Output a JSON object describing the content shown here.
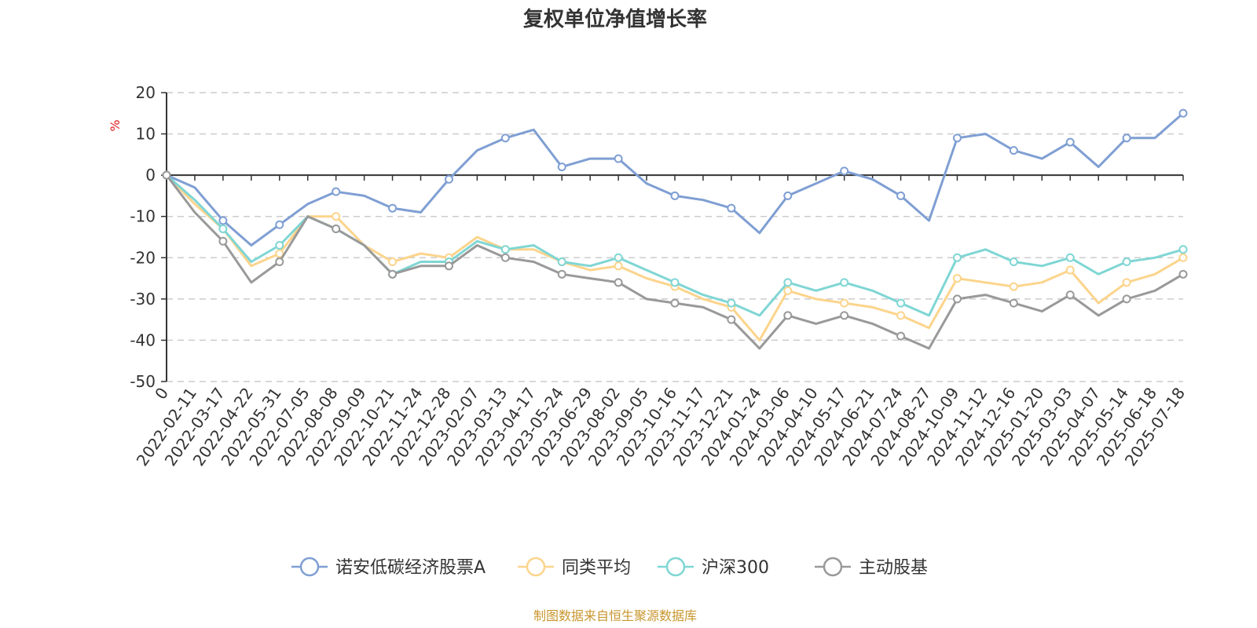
{
  "chart_data": {
    "type": "line",
    "title": "复权单位净值增长率",
    "ylabel": "%",
    "ylim": [
      -50,
      20
    ],
    "yticks": [
      20,
      10,
      0,
      -10,
      -20,
      -30,
      -40,
      -50
    ],
    "grid": true,
    "legend_position": "bottom",
    "categories": [
      "0",
      "2022-02-11",
      "2022-03-17",
      "2022-04-22",
      "2022-05-31",
      "2022-07-05",
      "2022-08-08",
      "2022-09-09",
      "2022-10-21",
      "2022-11-24",
      "2022-12-28",
      "2023-02-07",
      "2023-03-13",
      "2023-04-17",
      "2023-05-24",
      "2023-06-29",
      "2023-08-02",
      "2023-09-05",
      "2023-10-16",
      "2023-11-17",
      "2023-12-21",
      "2024-01-24",
      "2024-03-06",
      "2024-04-10",
      "2024-05-17",
      "2024-06-21",
      "2024-07-24",
      "2024-08-27",
      "2024-10-09",
      "2024-11-12",
      "2024-12-16",
      "2025-01-20",
      "2025-03-03",
      "2025-04-07",
      "2025-05-14",
      "2025-06-18",
      "2025-07-18"
    ],
    "series": [
      {
        "name": "诺安低碳经济股票A",
        "color": "#7f9fd3",
        "values": [
          0,
          -3,
          -11,
          -17,
          -12,
          -7,
          -4,
          -5,
          -8,
          -9,
          -1,
          6,
          9,
          11,
          2,
          4,
          4,
          -2,
          -5,
          -6,
          -8,
          -14,
          -5,
          -2,
          1,
          -1,
          -5,
          -11,
          9,
          10,
          6,
          4,
          8,
          2,
          9,
          9,
          15
        ]
      },
      {
        "name": "同类平均",
        "color": "#fcd48c",
        "values": [
          0,
          -7,
          -13,
          -22,
          -19,
          -10,
          -10,
          -17,
          -21,
          -19,
          -20,
          -15,
          -18,
          -18,
          -21,
          -23,
          -22,
          -25,
          -27,
          -30,
          -32,
          -40,
          -28,
          -30,
          -31,
          -32,
          -34,
          -37,
          -25,
          -26,
          -27,
          -26,
          -23,
          -31,
          -26,
          -24,
          -20
        ]
      },
      {
        "name": "沪深300",
        "color": "#7fd6d4",
        "values": [
          0,
          -6,
          -13,
          -21,
          -17,
          -10,
          -13,
          -17,
          -24,
          -21,
          -21,
          -16,
          -18,
          -17,
          -21,
          -22,
          -20,
          -23,
          -26,
          -29,
          -31,
          -34,
          -26,
          -28,
          -26,
          -28,
          -31,
          -34,
          -20,
          -18,
          -21,
          -22,
          -20,
          -24,
          -21,
          -20,
          -18
        ]
      },
      {
        "name": "主动股基",
        "color": "#999999",
        "values": [
          0,
          -9,
          -16,
          -26,
          -21,
          -10,
          -13,
          -17,
          -24,
          -22,
          -22,
          -17,
          -20,
          -21,
          -24,
          -25,
          -26,
          -30,
          -31,
          -32,
          -35,
          -42,
          -34,
          -36,
          -34,
          -36,
          -39,
          -42,
          -30,
          -29,
          -31,
          -33,
          -29,
          -34,
          -30,
          -28,
          -24
        ]
      }
    ]
  },
  "source_note": "制图数据来自恒生聚源数据库"
}
